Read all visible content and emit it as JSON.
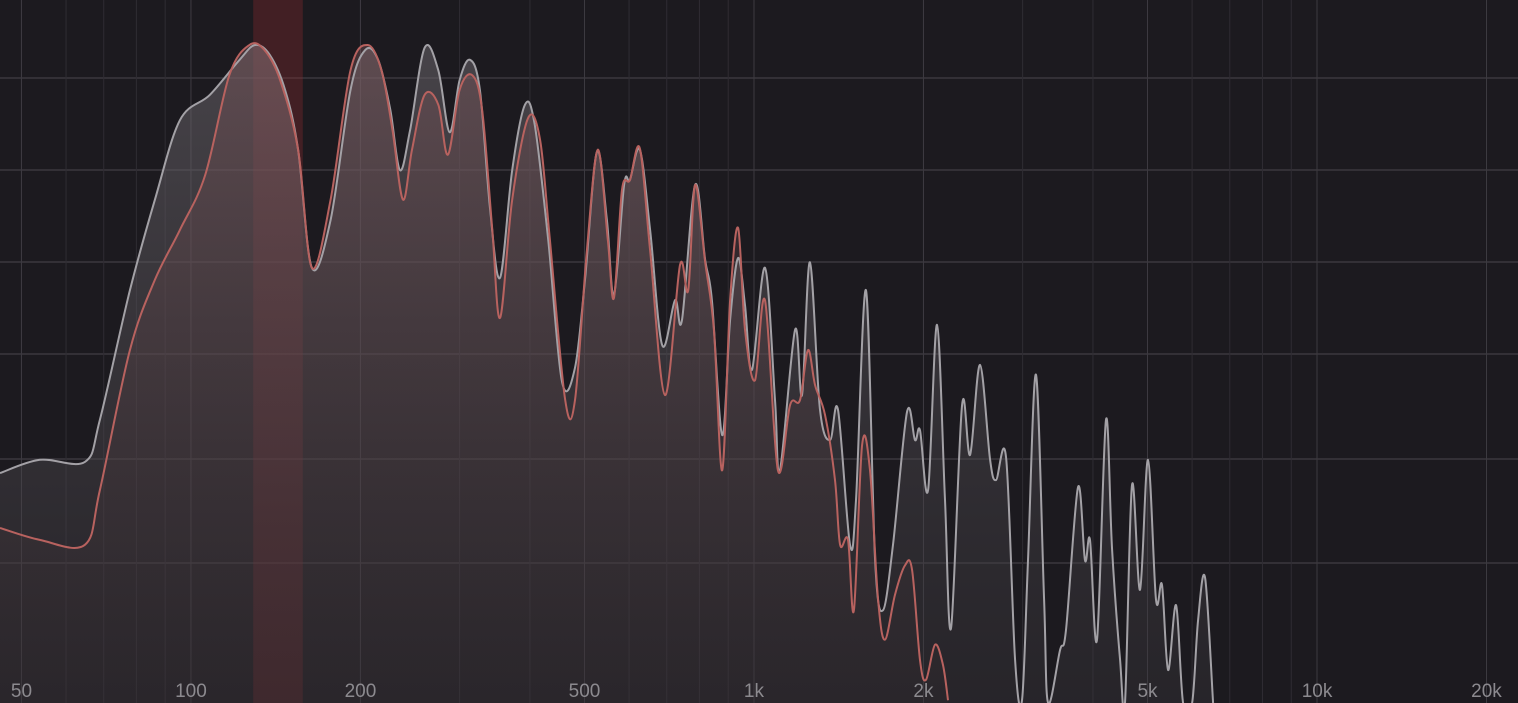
{
  "chart_data": {
    "type": "spectrum",
    "xscale": "log",
    "grid": true,
    "xlim": [
      45.8,
      22750
    ],
    "ylim": [
      0,
      100
    ],
    "xticks": [
      50,
      100,
      200,
      500,
      {
        "value": 1000,
        "label": "1k"
      },
      {
        "value": 2000,
        "label": "2k"
      },
      {
        "value": 5000,
        "label": "5k"
      },
      {
        "value": 10000,
        "label": "10k"
      },
      {
        "value": 20000,
        "label": "20k"
      }
    ],
    "highlight": [
      129,
      158
    ],
    "highlight_color": "#8a2a2e",
    "series": [
      {
        "color": "#a3a1a6",
        "x": [
          45.8,
          53.9,
          64.8,
          68.9,
          77.9,
          86.3,
          95.6,
          108,
          122,
          130,
          138,
          147,
          155,
          164,
          177,
          192,
          204,
          215,
          226,
          235,
          245,
          260,
          275,
          288,
          300,
          313,
          326,
          340,
          354,
          372,
          392,
          408,
          431,
          456,
          481,
          501,
          526,
          548,
          564,
          588,
          602,
          627,
          654,
          687,
          724,
          745,
          786,
          819,
          842,
          878,
          907,
          937,
          964,
          992,
          1046,
          1090,
          1112,
          1183,
          1217,
          1257,
          1310,
          1365,
          1410,
          1481,
          1518,
          1581,
          1641,
          1695,
          1766,
          1870,
          1932,
          1972,
          2038,
          2114,
          2184,
          2239,
          2342,
          2420,
          2520,
          2626,
          2691,
          2804,
          2909,
          2993,
          3067,
          3169,
          3275,
          3329,
          3496,
          3583,
          3763,
          3872,
          3952,
          4067,
          4219,
          4325,
          4469,
          4561,
          4693,
          4849,
          5010,
          5177,
          5306,
          5438,
          5619,
          5782,
          5999,
          6148,
          6327,
          6537
        ],
        "values": [
          32.7,
          34.6,
          34.3,
          40.3,
          58.7,
          71.6,
          82.9,
          86.5,
          91.5,
          93.6,
          92.2,
          87.2,
          78.7,
          61.9,
          68.7,
          87.2,
          92.9,
          91.5,
          84.4,
          75.8,
          81.5,
          93.2,
          90.0,
          81.2,
          88.6,
          91.5,
          87.2,
          70.1,
          60.5,
          75.8,
          85.1,
          82.2,
          65.9,
          45.7,
          47.7,
          60.2,
          78.4,
          68.7,
          58.0,
          73.7,
          74.4,
          78.7,
          67.3,
          50.9,
          57.3,
          54.5,
          73.7,
          63.0,
          57.3,
          38.1,
          54.5,
          63.3,
          56.6,
          47.4,
          61.9,
          43.1,
          33.1,
          53.1,
          43.8,
          62.7,
          41.7,
          37.4,
          41.7,
          22.5,
          28.9,
          58.7,
          20.3,
          13.2,
          22.5,
          41.4,
          37.4,
          38.8,
          30.3,
          53.8,
          28.9,
          10.7,
          42.4,
          35.3,
          48.1,
          34.6,
          31.7,
          34.9,
          6.1,
          0.4,
          20.3,
          46.7,
          14.7,
          0,
          7.5,
          10.4,
          30.7,
          20.3,
          23.2,
          9.0,
          40.3,
          21.8,
          6.1,
          0,
          31.0,
          16.1,
          34.6,
          14.7,
          16.8,
          4.7,
          13.9,
          0,
          0,
          11.8,
          17.8,
          0
        ]
      },
      {
        "color": "#b8625f",
        "x": [
          45.8,
          53.9,
          64.8,
          68.9,
          77.9,
          86.3,
          95.6,
          106,
          117,
          127,
          135,
          144,
          155,
          164,
          177,
          192,
          206,
          218,
          228,
          238,
          247,
          260,
          275,
          286,
          300,
          316,
          329,
          343,
          354,
          372,
          397,
          417,
          434,
          462,
          481,
          505,
          528,
          550,
          564,
          583,
          602,
          627,
          654,
          695,
          739,
          764,
          786,
          819,
          849,
          878,
          907,
          937,
          964,
          1004,
          1046,
          1103,
          1159,
          1207,
          1247,
          1284,
          1337,
          1393,
          1422,
          1469,
          1505,
          1556,
          1607,
          1661,
          1709,
          1780,
          1855,
          1909,
          1972,
          2021,
          2097,
          2166,
          2211
        ],
        "values": [
          24.9,
          23.2,
          22.5,
          30.3,
          50.2,
          60.2,
          67.3,
          75.1,
          89.3,
          93.6,
          92.9,
          88.6,
          78.7,
          61.9,
          71.6,
          90.0,
          93.6,
          90.0,
          81.5,
          71.6,
          78.7,
          86.5,
          85.1,
          78.0,
          87.2,
          89.3,
          84.4,
          67.3,
          54.8,
          71.6,
          83.2,
          80.1,
          65.9,
          43.1,
          43.1,
          64.4,
          78.7,
          65.9,
          57.6,
          73.0,
          74.4,
          78.9,
          64.4,
          43.8,
          62.3,
          58.7,
          73.7,
          62.7,
          53.1,
          33.1,
          57.3,
          67.6,
          53.1,
          45.9,
          57.3,
          33.1,
          42.4,
          43.1,
          50.2,
          45.2,
          41.0,
          31.7,
          22.5,
          23.2,
          13.2,
          36.7,
          33.1,
          14.7,
          9.0,
          15.4,
          19.6,
          18.9,
          6.1,
          3.3,
          8.3,
          5.4,
          0.4
        ]
      }
    ]
  }
}
